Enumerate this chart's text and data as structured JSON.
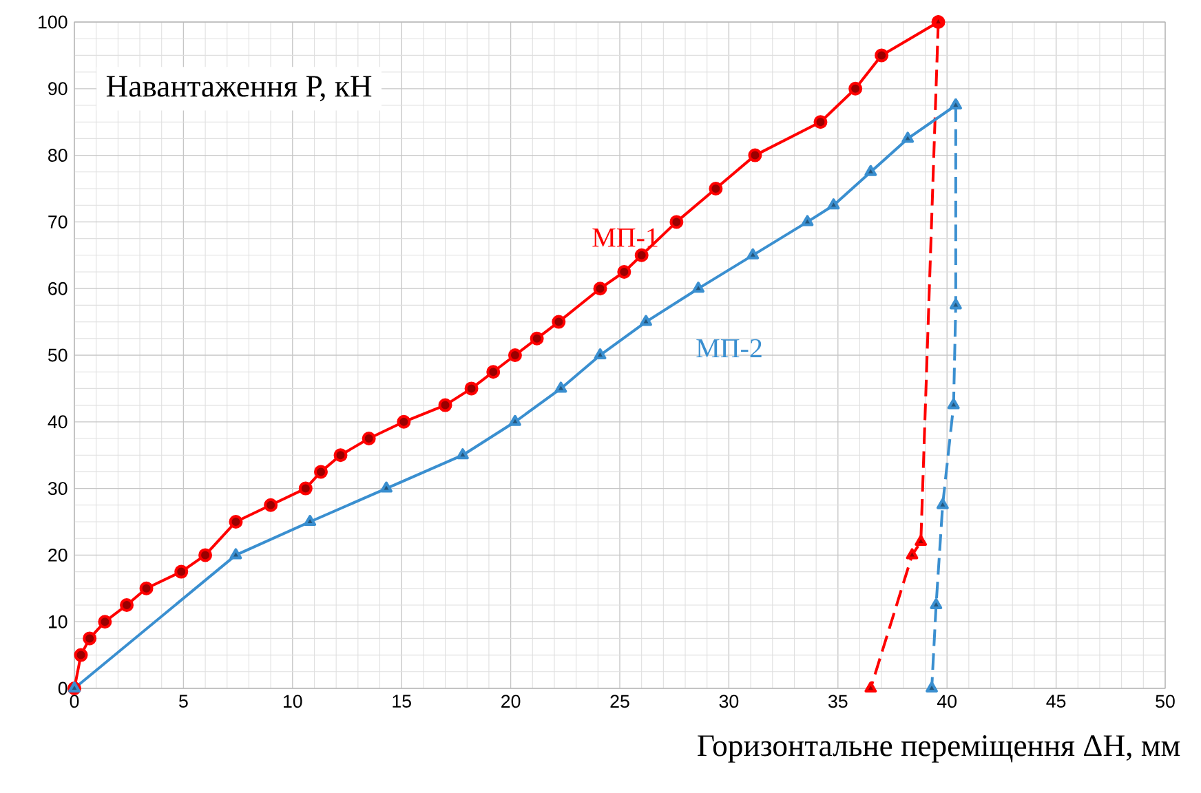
{
  "chart_data": {
    "type": "line",
    "xlabel": "Горизонтальне переміщення ΔH, мм",
    "ylabel": "Навантаження Р, кН",
    "xlim": [
      0,
      50
    ],
    "xticks": [
      0,
      5,
      10,
      15,
      20,
      25,
      30,
      35,
      40,
      45,
      50
    ],
    "ylim": [
      0,
      100
    ],
    "yticks": [
      0,
      10,
      20,
      30,
      40,
      50,
      60,
      70,
      80,
      90,
      100
    ],
    "grid": true,
    "legend": false,
    "series": [
      {
        "name": "МП-1",
        "color": "#ff0000",
        "marker": "circle",
        "line_style": "solid",
        "x": [
          0,
          0.3,
          0.7,
          1.4,
          2.4,
          3.3,
          4.9,
          6,
          7.4,
          9,
          10.6,
          11.3,
          12.2,
          13.5,
          15.1,
          17,
          18.2,
          19.2,
          20.2,
          21.2,
          22.2,
          24.1,
          25.2,
          26,
          27.6,
          29.4,
          31.2,
          34.2,
          35.8,
          37,
          39.6
        ],
        "values": [
          0,
          5,
          7.5,
          10,
          12.5,
          15,
          17.5,
          20,
          25,
          27.5,
          30,
          32.5,
          35,
          37.5,
          40,
          42.5,
          45,
          47.5,
          50,
          52.5,
          55,
          60,
          62.5,
          65,
          70,
          75,
          80,
          85,
          90,
          95,
          100
        ]
      },
      {
        "color": "#ff0000",
        "marker": "triangle",
        "line_style": "dashed",
        "x": [
          39.6,
          38.8,
          38.4,
          36.5
        ],
        "values": [
          100,
          22,
          20,
          0
        ]
      },
      {
        "name": "МП-2",
        "color": "#3a8fd0",
        "marker": "triangle",
        "line_style": "solid",
        "x": [
          0,
          7.4,
          10.8,
          14.3,
          17.8,
          20.2,
          22.3,
          24.1,
          26.2,
          28.6,
          31.1,
          33.6,
          34.8,
          36.5,
          38.2,
          40.4
        ],
        "values": [
          0,
          20,
          25,
          30,
          35,
          40,
          45,
          50,
          55,
          60,
          65,
          70,
          72.5,
          77.5,
          82.5,
          87.5
        ]
      },
      {
        "color": "#3a8fd0",
        "marker": "triangle",
        "line_style": "dashed",
        "x": [
          40.4,
          40.4,
          40.3,
          39.8,
          39.5,
          39.3
        ],
        "values": [
          87.5,
          57.5,
          42.5,
          27.5,
          12.5,
          0
        ]
      }
    ]
  }
}
